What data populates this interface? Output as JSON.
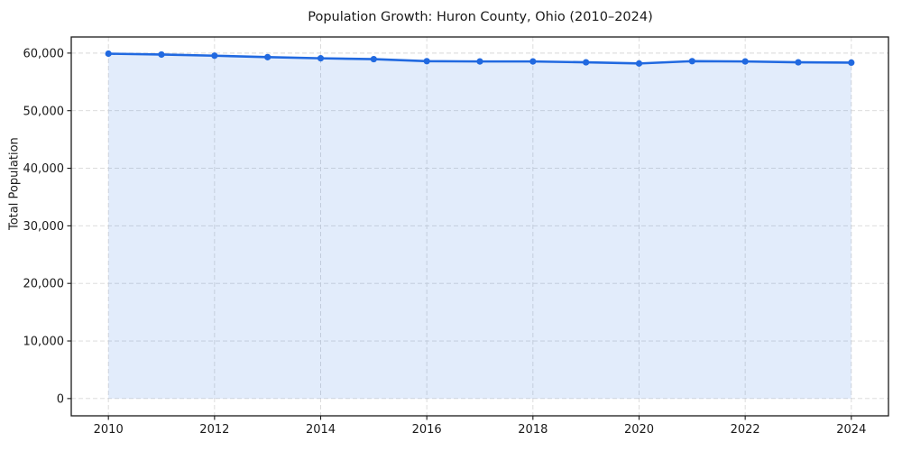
{
  "chart_data": {
    "type": "area",
    "title": "Population Growth: Huron County, Ohio (2010–2024)",
    "xlabel": "",
    "ylabel": "Total Population",
    "series_name": "Total Population",
    "x": [
      2010,
      2011,
      2012,
      2013,
      2014,
      2015,
      2016,
      2017,
      2018,
      2019,
      2020,
      2021,
      2022,
      2023,
      2024
    ],
    "values": [
      59900,
      59750,
      59550,
      59300,
      59100,
      58950,
      58600,
      58550,
      58550,
      58400,
      58200,
      58600,
      58550,
      58400,
      58350
    ],
    "xlim": [
      2009.3,
      2024.7
    ],
    "ylim": [
      -3000,
      62800
    ],
    "xticks": [
      2010,
      2012,
      2014,
      2016,
      2018,
      2020,
      2022,
      2024
    ],
    "xtick_labels": [
      "2010",
      "2012",
      "2014",
      "2016",
      "2018",
      "2020",
      "2022",
      "2024"
    ],
    "yticks": [
      0,
      10000,
      20000,
      30000,
      40000,
      50000,
      60000
    ],
    "ytick_labels": [
      "0",
      "10,000",
      "20,000",
      "30,000",
      "40,000",
      "50,000",
      "60,000"
    ],
    "grid": true,
    "grid_style": "dashed",
    "legend": "none",
    "marker": "circle",
    "colors": {
      "line": "#2169e0",
      "marker": "#2169e0",
      "fill": "rgba(33,105,224,0.13)",
      "grid": "#d8d8d8",
      "spine": "#1a1a1a",
      "tick_label": "#1a1a1a",
      "background": "#ffffff"
    }
  }
}
